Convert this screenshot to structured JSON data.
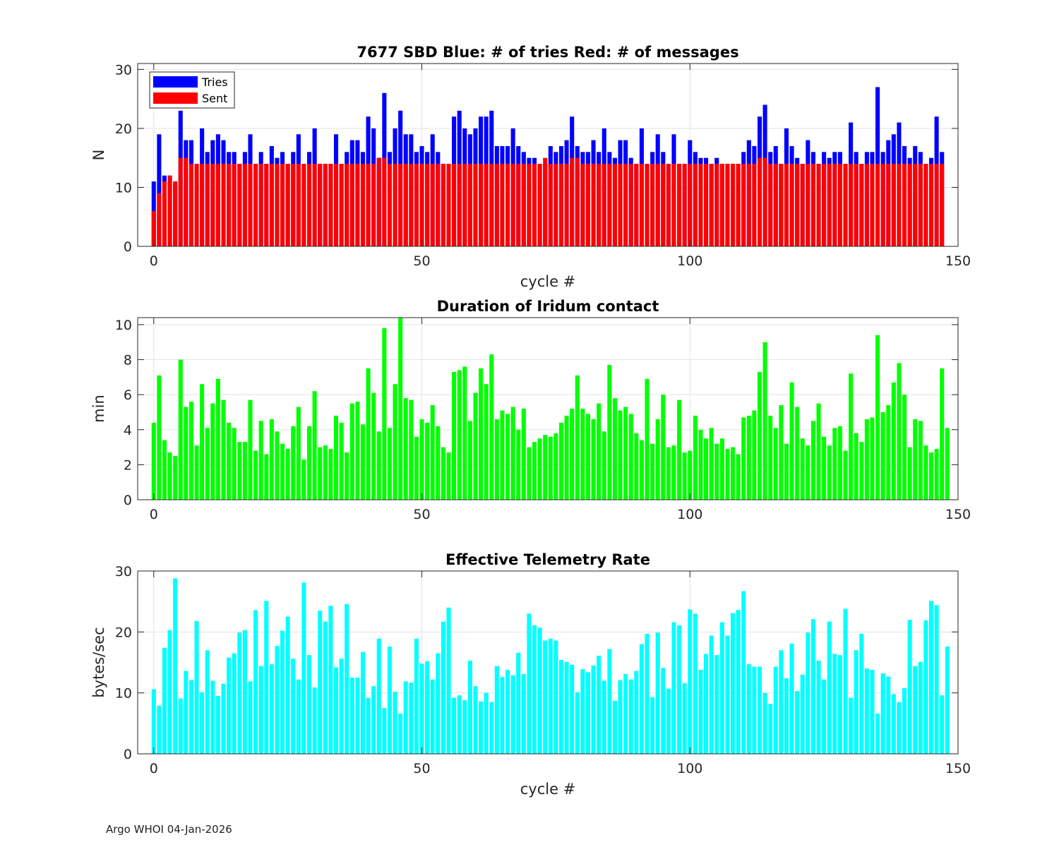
{
  "footer": "Argo WHOI 04-Jan-2026",
  "chart_data": [
    {
      "type": "bar",
      "title": "7677 SBD  Blue: # of tries   Red: # of messages",
      "xlabel": "cycle #",
      "ylabel": "N",
      "xlim": [
        -3,
        150
      ],
      "ylim": [
        0,
        31
      ],
      "xticks": [
        0,
        50,
        100,
        150
      ],
      "yticks": [
        0,
        10,
        20,
        30
      ],
      "grid": true,
      "legend": {
        "position": "top-left",
        "entries": [
          {
            "name": "Tries",
            "color": "#0000ff"
          },
          {
            "name": "Sent",
            "color": "#ff0000"
          }
        ]
      },
      "series": [
        {
          "name": "Tries",
          "color": "#0000ff",
          "values": [
            11,
            19,
            12,
            12,
            11,
            23,
            18,
            18,
            14,
            20,
            16,
            18,
            19,
            18,
            16,
            16,
            14,
            16,
            19,
            14,
            16,
            14,
            17,
            15,
            16,
            14,
            16,
            19,
            14,
            16,
            20,
            14,
            14,
            14,
            19,
            14,
            16,
            18,
            18,
            16,
            22,
            20,
            15,
            26,
            16,
            20,
            23,
            19,
            19,
            16,
            17,
            16,
            19,
            16,
            14,
            14,
            22,
            23,
            20,
            19,
            20,
            22,
            22,
            23,
            17,
            17,
            17,
            20,
            17,
            16,
            15,
            15,
            14,
            14,
            17,
            16,
            17,
            18,
            22,
            17,
            16,
            16,
            18,
            16,
            20,
            16,
            15,
            18,
            18,
            15,
            14,
            20,
            14,
            16,
            19,
            16,
            14,
            19,
            14,
            14,
            18,
            16,
            15,
            15,
            14,
            15,
            14,
            14,
            14,
            14,
            16,
            18,
            17,
            22,
            24,
            16,
            17,
            14,
            20,
            17,
            15,
            14,
            18,
            16,
            14,
            16,
            15,
            16,
            16,
            14,
            21,
            16,
            14,
            16,
            16,
            27,
            16,
            18,
            19,
            21,
            17,
            15,
            17,
            16,
            14,
            15,
            22,
            16
          ]
        },
        {
          "name": "Sent",
          "color": "#ff0000",
          "values": [
            6,
            9,
            11,
            12,
            11,
            15,
            15,
            14,
            14,
            14,
            14,
            14,
            14,
            14,
            14,
            14,
            14,
            14,
            14,
            14,
            14,
            14,
            14,
            14,
            14,
            14,
            14,
            14,
            14,
            14,
            14,
            14,
            14,
            14,
            14,
            14,
            14,
            14,
            14,
            14,
            14,
            14,
            15,
            15,
            14,
            14,
            14,
            14,
            14,
            14,
            14,
            14,
            14,
            14,
            14,
            14,
            14,
            14,
            14,
            14,
            14,
            14,
            14,
            14,
            14,
            14,
            14,
            14,
            14,
            14,
            14,
            14,
            14,
            15,
            14,
            14,
            14,
            14,
            15,
            15,
            14,
            14,
            14,
            14,
            14,
            14,
            14,
            14,
            14,
            14,
            14,
            14,
            14,
            14,
            14,
            14,
            14,
            14,
            14,
            14,
            14,
            14,
            14,
            14,
            14,
            14,
            14,
            14,
            14,
            14,
            14,
            14,
            14,
            15,
            15,
            14,
            14,
            14,
            14,
            14,
            14,
            14,
            14,
            14,
            14,
            14,
            14,
            14,
            14,
            14,
            14,
            14,
            14,
            14,
            14,
            14,
            14,
            14,
            14,
            14,
            14,
            14,
            14,
            14,
            14,
            14,
            14,
            14
          ]
        }
      ]
    },
    {
      "type": "bar",
      "title": "Duration of Iridum contact",
      "xlabel": "",
      "ylabel": "min",
      "xlim": [
        -3,
        150
      ],
      "ylim": [
        0,
        10.4
      ],
      "xticks": [
        0,
        50,
        100,
        150
      ],
      "yticks": [
        0,
        2,
        4,
        6,
        8,
        10
      ],
      "grid": true,
      "series": [
        {
          "name": "Duration",
          "color": "#00ff00",
          "values": [
            4.4,
            7.1,
            3.4,
            2.7,
            2.5,
            8.0,
            5.3,
            5.6,
            3.1,
            6.6,
            4.1,
            5.5,
            6.9,
            5.7,
            4.4,
            4.1,
            3.3,
            3.3,
            5.7,
            2.8,
            4.5,
            2.6,
            4.6,
            3.9,
            3.2,
            2.9,
            4.2,
            5.3,
            2.3,
            4.2,
            6.2,
            3.0,
            3.1,
            2.9,
            4.8,
            4.4,
            2.7,
            5.5,
            5.6,
            4.3,
            7.5,
            6.1,
            3.9,
            9.8,
            4.1,
            6.6,
            10.4,
            5.8,
            5.7,
            3.6,
            4.6,
            4.4,
            5.4,
            4.2,
            3.0,
            2.7,
            7.3,
            7.4,
            7.6,
            4.5,
            6.1,
            7.5,
            6.6,
            8.3,
            4.6,
            5.1,
            4.9,
            5.3,
            4.0,
            5.2,
            3.0,
            3.3,
            3.5,
            3.7,
            3.6,
            3.8,
            4.4,
            4.8,
            5.2,
            7.1,
            5.2,
            4.9,
            4.6,
            5.5,
            3.9,
            7.7,
            5.8,
            5.1,
            5.3,
            4.9,
            3.8,
            3.4,
            6.9,
            3.2,
            4.6,
            6.0,
            3.0,
            3.1,
            5.7,
            2.7,
            2.8,
            4.8,
            4.0,
            3.5,
            4.1,
            3.2,
            3.5,
            2.9,
            3.0,
            2.6,
            4.7,
            4.8,
            5.1,
            7.3,
            9.0,
            4.8,
            4.1,
            5.4,
            3.2,
            6.7,
            5.3,
            3.5,
            3.1,
            4.5,
            5.5,
            3.6,
            3.1,
            4.1,
            4.2,
            2.8,
            7.2,
            3.8,
            3.3,
            4.6,
            4.7,
            9.4,
            5.0,
            5.4,
            6.7,
            7.8,
            6.0,
            3.0,
            4.6,
            4.5,
            3.1,
            2.7,
            2.9,
            7.5,
            4.1
          ]
        }
      ]
    },
    {
      "type": "bar",
      "title": "Effective Telemetry Rate",
      "xlabel": "cycle #",
      "ylabel": "bytes/sec",
      "xlim": [
        -3,
        150
      ],
      "ylim": [
        0,
        30
      ],
      "xticks": [
        0,
        50,
        100,
        150
      ],
      "yticks": [
        0,
        10,
        20,
        30
      ],
      "grid": true,
      "series": [
        {
          "name": "Rate",
          "color": "#00ffff",
          "values": [
            10.6,
            7.9,
            17.4,
            20.3,
            28.8,
            9.1,
            13.6,
            12.1,
            21.8,
            10.1,
            17.0,
            12.0,
            9.5,
            11.5,
            15.8,
            16.5,
            19.9,
            20.3,
            11.9,
            23.6,
            14.4,
            25.1,
            14.7,
            17.7,
            20.2,
            22.5,
            15.6,
            12.2,
            28.1,
            16.2,
            10.9,
            23.5,
            21.7,
            24.3,
            14.2,
            15.6,
            24.6,
            12.5,
            12.5,
            16.7,
            9.2,
            11.1,
            18.9,
            7.5,
            17.6,
            10.2,
            6.6,
            11.9,
            11.7,
            18.9,
            14.8,
            15.2,
            12.2,
            16.5,
            21.7,
            24.0,
            9.2,
            9.6,
            8.8,
            15.3,
            11.1,
            8.6,
            10.0,
            8.5,
            14.4,
            12.6,
            13.8,
            12.9,
            16.6,
            13.1,
            23.0,
            21.1,
            20.7,
            18.6,
            18.9,
            18.6,
            15.4,
            15.1,
            14.6,
            10.1,
            13.9,
            13.4,
            14.5,
            16.1,
            12.0,
            17.2,
            8.7,
            12.1,
            13.1,
            12.2,
            13.6,
            18.0,
            19.7,
            9.3,
            19.9,
            14.1,
            10.7,
            21.6,
            21.1,
            11.6,
            23.7,
            23.0,
            13.8,
            16.4,
            19.4,
            16.2,
            21.6,
            19.4,
            23.1,
            23.6,
            26.7,
            14.7,
            14.3,
            14.3,
            10.0,
            8.2,
            14.3,
            17.0,
            12.4,
            18.1,
            10.3,
            13.0,
            19.9,
            22.1,
            15.3,
            12.2,
            21.7,
            16.4,
            16.2,
            23.8,
            9.2,
            17.0,
            19.7,
            14.0,
            13.8,
            6.6,
            13.2,
            12.7,
            9.8,
            8.5,
            10.8,
            22.0,
            14.4,
            15.1,
            21.9,
            25.1,
            24.4,
            9.6,
            17.6
          ]
        }
      ]
    }
  ]
}
